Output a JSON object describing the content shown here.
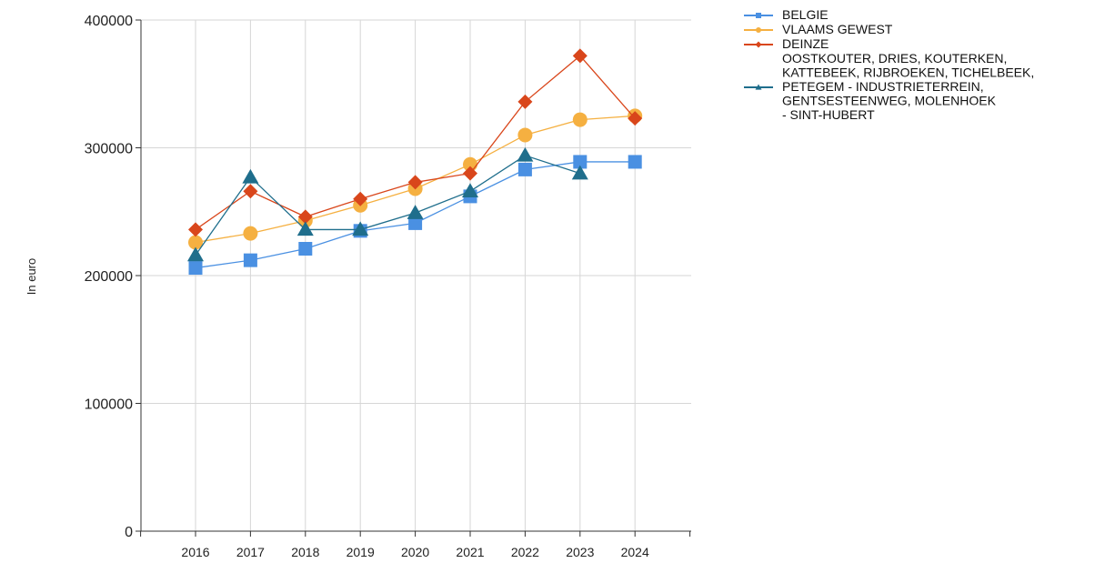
{
  "chart_data": {
    "type": "line",
    "ylabel": "In euro",
    "xlabel": "",
    "ylim": [
      0,
      400000
    ],
    "yticks": [
      0,
      100000,
      200000,
      300000,
      400000
    ],
    "ytick_labels": [
      "0",
      "100000",
      "200000",
      "300000",
      "400000"
    ],
    "categories": [
      "2016",
      "2017",
      "2018",
      "2019",
      "2020",
      "2021",
      "2022",
      "2023",
      "2024"
    ],
    "grid": true,
    "legend_position": "top-right",
    "series": [
      {
        "name": "BELGIE",
        "legend_lines": [
          "BELGIE"
        ],
        "color": "#4a90e2",
        "marker": "square",
        "values": [
          206000,
          212000,
          221000,
          235000,
          241000,
          262000,
          283000,
          289000,
          289000
        ]
      },
      {
        "name": "VLAAMS GEWEST",
        "legend_lines": [
          "VLAAMS GEWEST"
        ],
        "color": "#f5b041",
        "marker": "circle",
        "values": [
          226000,
          233000,
          243000,
          255000,
          268000,
          287000,
          310000,
          322000,
          325000
        ]
      },
      {
        "name": "DEINZE",
        "legend_lines": [
          "DEINZE"
        ],
        "color": "#d9461b",
        "marker": "diamond",
        "values": [
          236000,
          266000,
          246000,
          260000,
          273000,
          280000,
          336000,
          372000,
          323000
        ]
      },
      {
        "name": "OOSTKOUTER, DRIES, KOUTERKEN, KATTEBEEK, RIJBROEKEN, TICHELBEEK, PETEGEM - INDUSTRIETERREIN, GENTSESTEENWEG, MOLENHOEK - SINT-HUBERT",
        "legend_lines": [
          "OOSTKOUTER, DRIES, KOUTERKEN,",
          "KATTEBEEK, RIJBROEKEN, TICHELBEEK,",
          "PETEGEM - INDUSTRIETERREIN,",
          "GENTSESTEENWEG, MOLENHOEK",
          "- SINT-HUBERT"
        ],
        "color": "#1f6e8c",
        "marker": "triangle",
        "values": [
          216000,
          277000,
          236000,
          236000,
          249000,
          266000,
          294000,
          280000,
          null
        ]
      }
    ]
  }
}
